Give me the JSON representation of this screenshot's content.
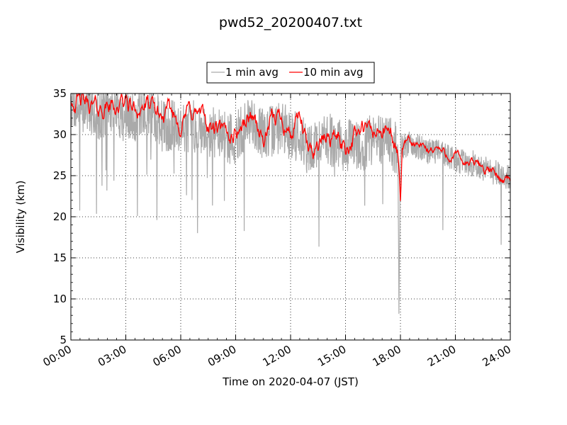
{
  "chart_data": {
    "type": "line",
    "title": "pwd52_20200407.txt",
    "xlabel": "Time on 2020-04-07 (JST)",
    "ylabel": "Visibility (km)",
    "x_unit": "hour",
    "xlim": [
      0,
      24
    ],
    "ylim": [
      5,
      35
    ],
    "x_ticks": [
      0,
      3,
      6,
      9,
      12,
      15,
      18,
      21,
      24
    ],
    "x_tick_labels": [
      "00:00",
      "03:00",
      "06:00",
      "09:00",
      "12:00",
      "15:00",
      "18:00",
      "21:00",
      "24:00"
    ],
    "y_ticks": [
      5,
      10,
      15,
      20,
      25,
      30,
      35
    ],
    "y_tick_labels": [
      "5",
      "10",
      "15",
      "20",
      "25",
      "30",
      "35"
    ],
    "grid": true,
    "legend_position": "top-center",
    "series": [
      {
        "name": "1 min avg",
        "color": "#aaaaaa",
        "anchors": [
          [
            0.0,
            34.0
          ],
          [
            0.5,
            33.0
          ],
          [
            1.0,
            33.5
          ],
          [
            1.5,
            32.5
          ],
          [
            2.0,
            33.0
          ],
          [
            2.5,
            33.0
          ],
          [
            3.0,
            32.0
          ],
          [
            3.5,
            32.0
          ],
          [
            4.0,
            33.0
          ],
          [
            4.5,
            32.5
          ],
          [
            5.0,
            31.0
          ],
          [
            5.5,
            31.0
          ],
          [
            6.0,
            31.0
          ],
          [
            6.5,
            31.0
          ],
          [
            7.0,
            31.0
          ],
          [
            7.5,
            30.5
          ],
          [
            8.0,
            30.0
          ],
          [
            8.5,
            29.5
          ],
          [
            9.0,
            29.5
          ],
          [
            9.5,
            31.0
          ],
          [
            10.0,
            31.5
          ],
          [
            10.5,
            30.0
          ],
          [
            11.0,
            30.5
          ],
          [
            11.5,
            31.0
          ],
          [
            12.0,
            30.0
          ],
          [
            12.5,
            30.0
          ],
          [
            13.0,
            28.0
          ],
          [
            13.5,
            29.0
          ],
          [
            14.0,
            29.5
          ],
          [
            14.5,
            29.0
          ],
          [
            15.0,
            28.5
          ],
          [
            15.5,
            29.0
          ],
          [
            16.0,
            28.5
          ],
          [
            16.5,
            29.5
          ],
          [
            17.0,
            29.5
          ],
          [
            17.5,
            29.0
          ],
          [
            17.85,
            28.0
          ],
          [
            17.92,
            7.2
          ],
          [
            18.0,
            28.5
          ],
          [
            18.5,
            29.0
          ],
          [
            19.0,
            28.5
          ],
          [
            19.5,
            28.0
          ],
          [
            20.0,
            28.0
          ],
          [
            20.5,
            27.5
          ],
          [
            21.0,
            27.0
          ],
          [
            21.5,
            26.5
          ],
          [
            22.0,
            26.5
          ],
          [
            22.5,
            26.0
          ],
          [
            23.0,
            25.5
          ],
          [
            23.5,
            25.0
          ],
          [
            24.0,
            25.0
          ]
        ]
      },
      {
        "name": "10 min avg",
        "color": "#ff0000",
        "anchors": [
          [
            0.0,
            34.5
          ],
          [
            0.5,
            34.0
          ],
          [
            1.0,
            33.5
          ],
          [
            1.5,
            33.0
          ],
          [
            2.0,
            33.5
          ],
          [
            2.5,
            33.5
          ],
          [
            3.0,
            34.0
          ],
          [
            3.5,
            33.0
          ],
          [
            4.0,
            33.5
          ],
          [
            4.5,
            33.0
          ],
          [
            5.0,
            32.0
          ],
          [
            5.5,
            32.5
          ],
          [
            6.0,
            31.5
          ],
          [
            6.5,
            33.0
          ],
          [
            7.0,
            32.5
          ],
          [
            7.5,
            31.0
          ],
          [
            8.0,
            30.5
          ],
          [
            8.5,
            29.5
          ],
          [
            9.0,
            30.5
          ],
          [
            9.5,
            31.5
          ],
          [
            10.0,
            32.5
          ],
          [
            10.5,
            29.0
          ],
          [
            11.0,
            31.5
          ],
          [
            11.5,
            32.5
          ],
          [
            12.0,
            30.0
          ],
          [
            12.5,
            32.0
          ],
          [
            13.0,
            27.5
          ],
          [
            13.5,
            29.0
          ],
          [
            14.0,
            29.5
          ],
          [
            14.5,
            30.0
          ],
          [
            15.0,
            28.5
          ],
          [
            15.5,
            30.0
          ],
          [
            16.0,
            30.5
          ],
          [
            16.5,
            30.0
          ],
          [
            17.0,
            30.5
          ],
          [
            17.5,
            30.0
          ],
          [
            17.9,
            27.0
          ],
          [
            18.0,
            22.0
          ],
          [
            18.1,
            28.5
          ],
          [
            18.5,
            29.0
          ],
          [
            19.0,
            28.5
          ],
          [
            19.5,
            28.0
          ],
          [
            20.0,
            28.5
          ],
          [
            20.5,
            27.5
          ],
          [
            21.0,
            27.5
          ],
          [
            21.5,
            26.5
          ],
          [
            22.0,
            26.5
          ],
          [
            22.5,
            26.0
          ],
          [
            23.0,
            25.5
          ],
          [
            23.5,
            24.5
          ],
          [
            24.0,
            25.0
          ]
        ]
      }
    ]
  }
}
